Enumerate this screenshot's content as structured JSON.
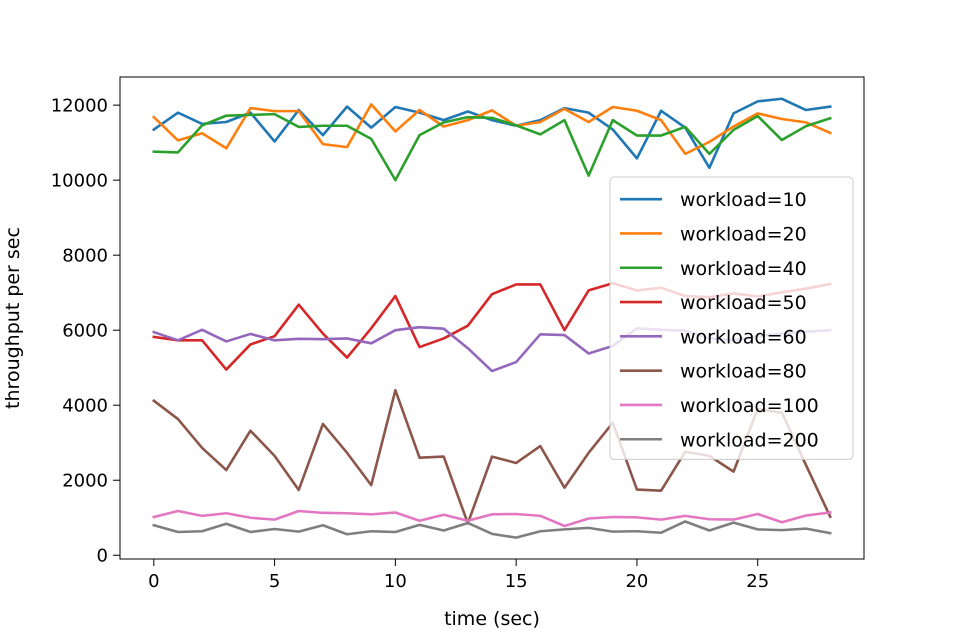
{
  "chart_data": {
    "type": "line",
    "title": "",
    "xlabel": "time (sec)",
    "ylabel": "throughput per sec",
    "xlim": [
      -1.4,
      29.4
    ],
    "ylim": [
      -100,
      12750
    ],
    "xticks": [
      0,
      5,
      10,
      15,
      20,
      25
    ],
    "yticks": [
      0,
      2000,
      4000,
      6000,
      8000,
      10000,
      12000
    ],
    "legend_position": "center-right",
    "grid": false,
    "x": [
      0,
      1,
      2,
      3,
      4,
      5,
      6,
      7,
      8,
      9,
      10,
      11,
      12,
      13,
      14,
      15,
      16,
      17,
      18,
      19,
      20,
      21,
      22,
      23,
      24,
      25,
      26,
      27,
      28
    ],
    "series": [
      {
        "name": "workload=10",
        "color": "#1f77b4",
        "values": [
          11350,
          11800,
          11500,
          11550,
          11800,
          11030,
          11870,
          11200,
          11960,
          11400,
          11950,
          11800,
          11600,
          11830,
          11600,
          11450,
          11600,
          11920,
          11800,
          11350,
          10580,
          11850,
          11400,
          10330,
          11780,
          12100,
          12170,
          11870,
          11960
        ]
      },
      {
        "name": "workload=20",
        "color": "#ff7f0e",
        "values": [
          11680,
          11060,
          11250,
          10850,
          11920,
          11840,
          11840,
          10960,
          10880,
          12020,
          11300,
          11870,
          11430,
          11600,
          11860,
          11450,
          11550,
          11900,
          11550,
          11950,
          11850,
          11600,
          10700,
          11020,
          11430,
          11780,
          11630,
          11540,
          11260
        ]
      },
      {
        "name": "workload=40",
        "color": "#2ca02c",
        "values": [
          10760,
          10740,
          11460,
          11720,
          11740,
          11760,
          11420,
          11450,
          11450,
          11100,
          10000,
          11200,
          11540,
          11680,
          11660,
          11460,
          11220,
          11600,
          10120,
          11600,
          11190,
          11190,
          11420,
          10700,
          11340,
          11710,
          11070,
          11440,
          11650
        ]
      },
      {
        "name": "workload=50",
        "color": "#d62728",
        "values": [
          5820,
          5730,
          5730,
          4950,
          5620,
          5840,
          6680,
          5910,
          5270,
          6050,
          6910,
          5550,
          5780,
          6120,
          6960,
          7220,
          7220,
          6000,
          7060,
          7250,
          7060,
          7130,
          6910,
          6880,
          6980,
          6900,
          7010,
          7110,
          7230
        ]
      },
      {
        "name": "workload=60",
        "color": "#9467bd",
        "values": [
          5950,
          5730,
          6010,
          5700,
          5900,
          5730,
          5770,
          5760,
          5780,
          5650,
          6000,
          6080,
          6040,
          5520,
          4910,
          5150,
          5890,
          5870,
          5380,
          5580,
          6050,
          6010,
          5990,
          5780,
          5730,
          5840,
          5910,
          5960,
          6000
        ]
      },
      {
        "name": "workload=80",
        "color": "#8c564b",
        "values": [
          4120,
          3630,
          2860,
          2270,
          3320,
          2650,
          1740,
          3500,
          2730,
          1870,
          4400,
          2600,
          2630,
          850,
          2630,
          2460,
          2910,
          1800,
          2730,
          3530,
          1750,
          1720,
          2760,
          2650,
          2230,
          3900,
          3800,
          2400,
          1030
        ]
      },
      {
        "name": "workload=100",
        "color": "#e377c2",
        "values": [
          1020,
          1180,
          1050,
          1120,
          1000,
          950,
          1180,
          1130,
          1120,
          1090,
          1140,
          920,
          1080,
          920,
          1090,
          1100,
          1050,
          780,
          980,
          1020,
          1010,
          950,
          1050,
          960,
          950,
          1100,
          880,
          1060,
          1140
        ]
      },
      {
        "name": "workload=200",
        "color": "#7f7f7f",
        "values": [
          800,
          620,
          640,
          840,
          620,
          700,
          630,
          800,
          560,
          640,
          620,
          810,
          660,
          860,
          570,
          470,
          640,
          690,
          730,
          630,
          640,
          600,
          900,
          660,
          870,
          690,
          670,
          710,
          590
        ]
      }
    ]
  }
}
